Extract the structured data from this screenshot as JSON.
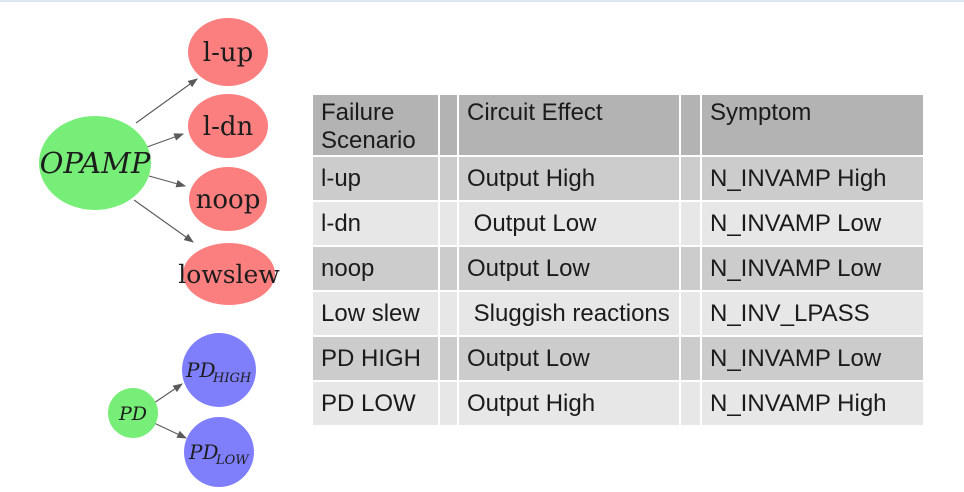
{
  "page": {
    "background": "#ffffff",
    "top_strip_color": "#dde7f3"
  },
  "diagram": {
    "colors": {
      "root_green": "#77ee77",
      "failure_red": "#fc7f7f",
      "pd_blue": "#7f7ffc",
      "arrow_gray": "#5a5a5a",
      "label_dark": "#1c1c1c"
    },
    "opamp_tree": {
      "root": {
        "label": "OPAMP"
      },
      "children": [
        {
          "label": "l-up"
        },
        {
          "label": "l-dn"
        },
        {
          "label": "noop"
        },
        {
          "label": "lowslew"
        }
      ]
    },
    "pd_tree": {
      "root": {
        "label": "PD"
      },
      "children": [
        {
          "main": "PD",
          "sub": "HIGH"
        },
        {
          "main": "PD",
          "sub": "LOW"
        }
      ]
    }
  },
  "table": {
    "colors": {
      "header_bg": "#b3b3b3",
      "row_odd_bg": "#cccccc",
      "row_even_bg": "#e7e7e7",
      "text": "#1b1b1b"
    },
    "headers": [
      "Failure Scenario",
      "Circuit Effect",
      "Symptom"
    ],
    "rows": [
      {
        "scenario": "l-up",
        "effect": "Output High",
        "symptom": "N_INVAMP High"
      },
      {
        "scenario": "l-dn",
        "effect": " Output Low",
        "symptom": "N_INVAMP Low"
      },
      {
        "scenario": "noop",
        "effect": "Output Low",
        "symptom": "N_INVAMP Low"
      },
      {
        "scenario": "Low slew",
        "effect": " Sluggish reactions",
        "symptom": "N_INV_LPASS"
      },
      {
        "scenario": "PD HIGH",
        "effect": "Output Low",
        "symptom": "N_INVAMP Low"
      },
      {
        "scenario": "PD LOW",
        "effect": "Output High",
        "symptom": "N_INVAMP High"
      }
    ]
  }
}
